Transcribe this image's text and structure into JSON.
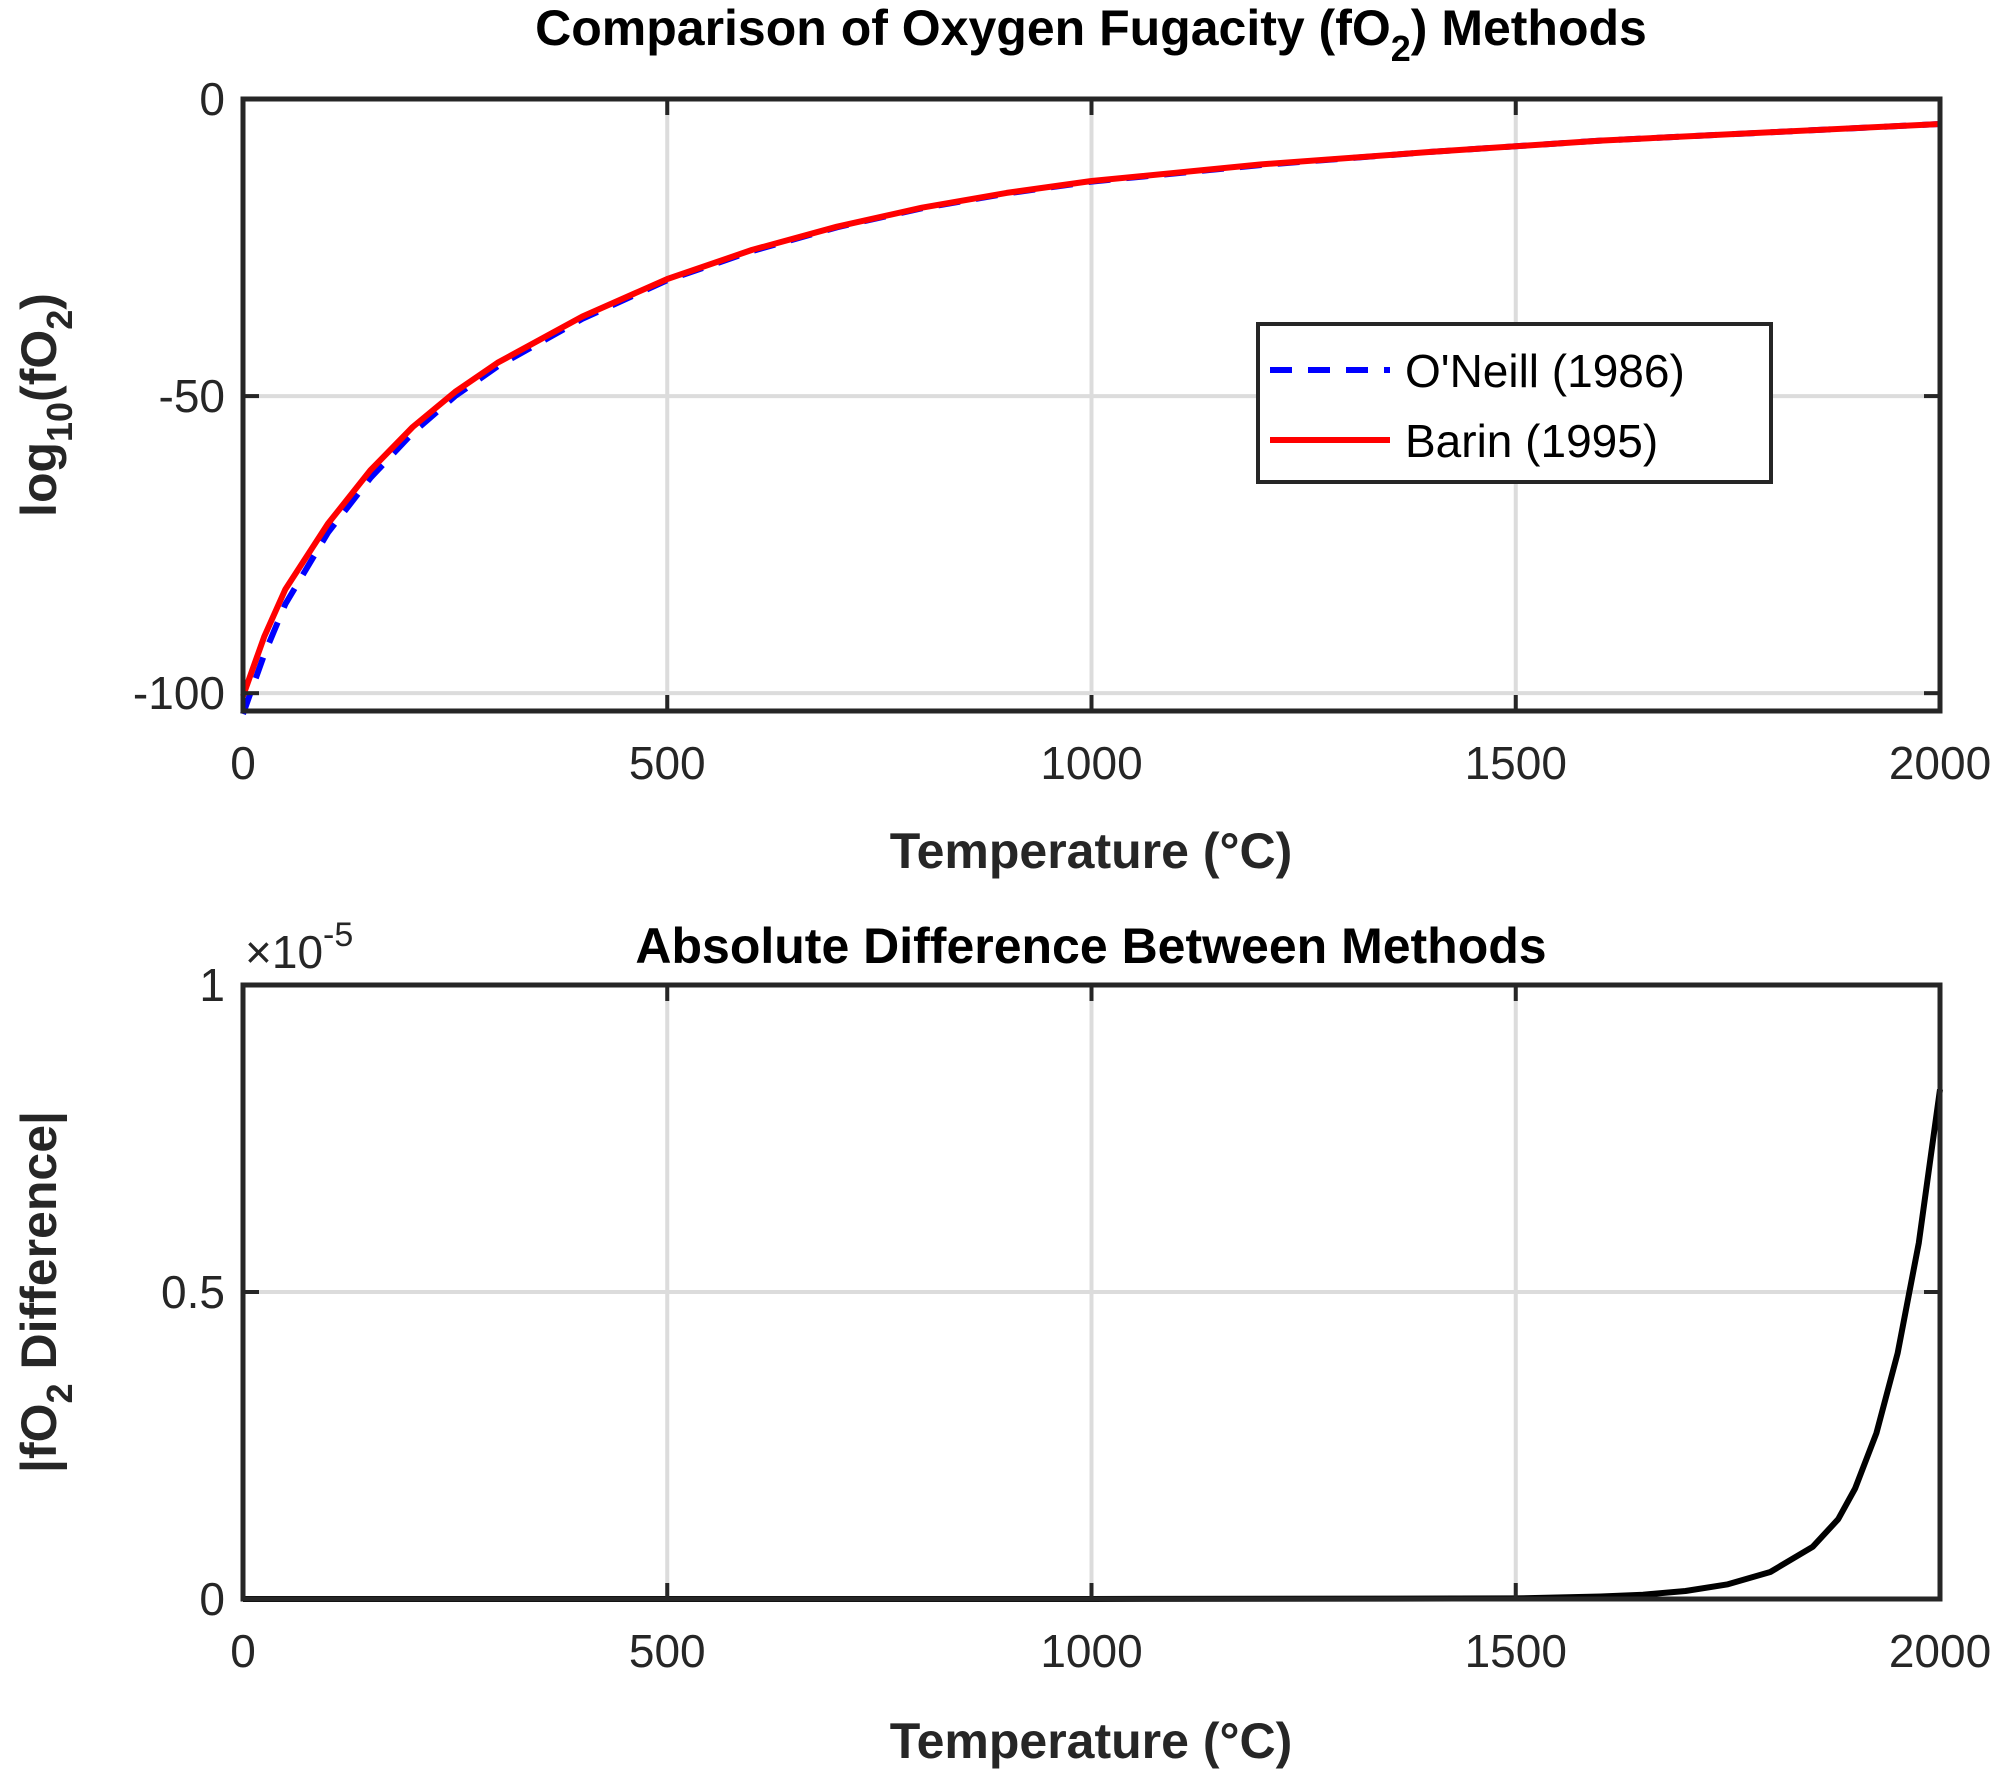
{
  "chart_data": [
    {
      "type": "line",
      "title": {
        "pre": "Comparison of Oxygen Fugacity (fO",
        "sub": "2",
        "post": ") Methods"
      },
      "xlabel": "Temperature (°C)",
      "ylabel": {
        "pre": "log",
        "sub": "10",
        "mid": "(fO",
        "sub2": "2",
        "post": ")"
      },
      "xlim": [
        0,
        2000
      ],
      "ylim": [
        -103,
        0
      ],
      "xticks": [
        0,
        500,
        1000,
        1500,
        2000
      ],
      "xtick_labels": [
        "0",
        "500",
        "1000",
        "1500",
        "2000"
      ],
      "yticks": [
        0,
        -50,
        -100
      ],
      "ytick_labels": [
        "0",
        "-50",
        "-100"
      ],
      "grid": true,
      "legend_placement": "center-right",
      "series": [
        {
          "name": "O'Neill (1986)",
          "color": "#0000ff",
          "style": "dashed",
          "x": [
            0,
            25,
            50,
            100,
            150,
            200,
            250,
            300,
            400,
            500,
            600,
            700,
            800,
            900,
            1000,
            1200,
            1400,
            1600,
            1800,
            2000
          ],
          "y": [
            -103.5,
            -93.5,
            -85.0,
            -73.0,
            -63.8,
            -56.2,
            -50.0,
            -45.0,
            -37.0,
            -30.5,
            -25.6,
            -21.6,
            -18.4,
            -15.9,
            -13.9,
            -11.1,
            -8.9,
            -7.0,
            -5.6,
            -4.2
          ]
        },
        {
          "name": "Barin (1995)",
          "color": "#ff0000",
          "style": "solid",
          "x": [
            0,
            25,
            50,
            100,
            150,
            200,
            250,
            300,
            400,
            500,
            600,
            700,
            800,
            900,
            1000,
            1200,
            1400,
            1600,
            1800,
            2000
          ],
          "y": [
            -100.5,
            -90.5,
            -82.5,
            -71.5,
            -62.5,
            -55.2,
            -49.3,
            -44.4,
            -36.6,
            -30.3,
            -25.4,
            -21.5,
            -18.3,
            -15.8,
            -13.8,
            -11.0,
            -8.9,
            -7.0,
            -5.6,
            -4.2
          ]
        }
      ]
    },
    {
      "type": "line",
      "title": "Absolute Difference Between Methods",
      "xlabel": "Temperature (°C)",
      "ylabel": {
        "pre": "|fO",
        "sub": "2",
        "post": " Difference|"
      },
      "exponent_label": {
        "pre": "×10",
        "sup": "-5"
      },
      "xlim": [
        0,
        2000
      ],
      "ylim": [
        0,
        1
      ],
      "xticks": [
        0,
        500,
        1000,
        1500,
        2000
      ],
      "xtick_labels": [
        "0",
        "500",
        "1000",
        "1500",
        "2000"
      ],
      "yticks": [
        0,
        0.5,
        1
      ],
      "ytick_labels": [
        "0",
        "0.5",
        "1"
      ],
      "grid": true,
      "series": [
        {
          "color": "#000000",
          "style": "solid",
          "x": [
            0,
            500,
            1000,
            1500,
            1600,
            1650,
            1700,
            1750,
            1800,
            1850,
            1880,
            1900,
            1925,
            1950,
            1975,
            2000
          ],
          "y": [
            0,
            0,
            0,
            0.001,
            0.004,
            0.007,
            0.013,
            0.024,
            0.044,
            0.085,
            0.13,
            0.18,
            0.27,
            0.4,
            0.58,
            0.83
          ]
        }
      ]
    }
  ]
}
